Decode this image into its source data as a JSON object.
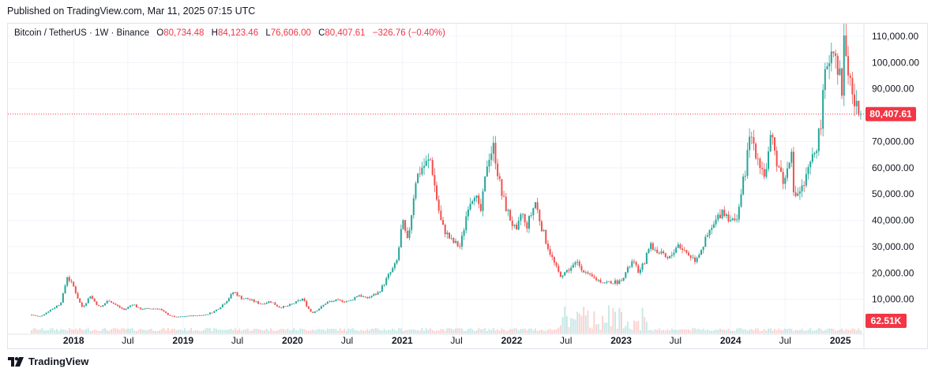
{
  "header": {
    "published": "Published on TradingView.com, Mar 11, 2025 07:15 UTC"
  },
  "legend": {
    "symbol": "Bitcoin / TetherUS · 1W · Binance",
    "o_label": "O",
    "o_value": "80,734.48",
    "h_label": "H",
    "h_value": "84,123.46",
    "l_label": "L",
    "l_value": "76,606.00",
    "c_label": "C",
    "c_value": "80,407.61",
    "change": "−326.76 (−0.40%)"
  },
  "footer": {
    "brand": "TradingView",
    "logo_icon": "tradingview-logo-icon"
  },
  "colors": {
    "up": "#26a69a",
    "down": "#ef5350",
    "price_tag": "#f23645",
    "grid": "#f0f3fa"
  },
  "chart_data": {
    "type": "candlestick",
    "interval": "1W",
    "y_axis": {
      "ticks": [
        10000,
        20000,
        30000,
        40000,
        50000,
        60000,
        70000,
        90000,
        100000,
        110000
      ],
      "tick_labels": [
        "10,000.00",
        "20,000.00",
        "30,000.00",
        "40,000.00",
        "50,000.00",
        "60,000.00",
        "70,000.00",
        "90,000.00",
        "100,000.00",
        "110,000.00"
      ],
      "range": [
        0,
        113000
      ]
    },
    "x_axis": {
      "ticks": [
        "2018-01-01",
        "2018-07-01",
        "2019-01-01",
        "2019-07-01",
        "2020-01-01",
        "2020-07-01",
        "2021-01-01",
        "2021-07-01",
        "2022-01-01",
        "2022-07-01",
        "2023-01-01",
        "2023-07-01",
        "2024-01-01",
        "2024-07-01",
        "2025-01-01"
      ],
      "tick_labels": [
        "2018",
        "Jul",
        "2019",
        "Jul",
        "2020",
        "Jul",
        "2021",
        "Jul",
        "2022",
        "Jul",
        "2023",
        "Jul",
        "2024",
        "Jul",
        "2025"
      ],
      "range": [
        "2017-08-14",
        "2025-03-10"
      ]
    },
    "last_price": {
      "value": 80407.61,
      "label": "80,407.61"
    },
    "volume_label": "62.51K",
    "price_path": [
      [
        "2017-08-14",
        4300
      ],
      [
        "2017-09-15",
        3400
      ],
      [
        "2017-10-20",
        5800
      ],
      [
        "2017-11-25",
        8500
      ],
      [
        "2017-12-17",
        19000
      ],
      [
        "2018-01-10",
        14500
      ],
      [
        "2018-02-06",
        7000
      ],
      [
        "2018-03-05",
        11500
      ],
      [
        "2018-04-06",
        6800
      ],
      [
        "2018-05-05",
        9800
      ],
      [
        "2018-06-25",
        6000
      ],
      [
        "2018-07-25",
        8400
      ],
      [
        "2018-08-15",
        6300
      ],
      [
        "2018-10-20",
        6500
      ],
      [
        "2018-11-25",
        3800
      ],
      [
        "2018-12-15",
        3200
      ],
      [
        "2019-01-20",
        3600
      ],
      [
        "2019-03-20",
        4000
      ],
      [
        "2019-04-20",
        5300
      ],
      [
        "2019-05-25",
        8500
      ],
      [
        "2019-06-26",
        13000
      ],
      [
        "2019-07-20",
        10500
      ],
      [
        "2019-08-15",
        10000
      ],
      [
        "2019-09-25",
        8200
      ],
      [
        "2019-10-26",
        9300
      ],
      [
        "2019-11-25",
        7000
      ],
      [
        "2019-12-18",
        7200
      ],
      [
        "2020-02-12",
        10300
      ],
      [
        "2020-03-13",
        4800
      ],
      [
        "2020-04-30",
        8800
      ],
      [
        "2020-06-01",
        9500
      ],
      [
        "2020-07-15",
        9200
      ],
      [
        "2020-08-15",
        11800
      ],
      [
        "2020-09-10",
        10300
      ],
      [
        "2020-10-20",
        12500
      ],
      [
        "2020-11-20",
        18500
      ],
      [
        "2020-12-20",
        24000
      ],
      [
        "2021-01-08",
        40000
      ],
      [
        "2021-01-25",
        32000
      ],
      [
        "2021-02-20",
        55000
      ],
      [
        "2021-03-13",
        60000
      ],
      [
        "2021-04-14",
        63000
      ],
      [
        "2021-05-20",
        38000
      ],
      [
        "2021-06-22",
        32000
      ],
      [
        "2021-07-20",
        30000
      ],
      [
        "2021-08-15",
        46000
      ],
      [
        "2021-09-07",
        51000
      ],
      [
        "2021-09-25",
        42000
      ],
      [
        "2021-10-20",
        64000
      ],
      [
        "2021-11-10",
        68000
      ],
      [
        "2021-12-05",
        50000
      ],
      [
        "2022-01-24",
        35000
      ],
      [
        "2022-02-10",
        44000
      ],
      [
        "2022-02-24",
        37000
      ],
      [
        "2022-03-28",
        47000
      ],
      [
        "2022-05-12",
        29000
      ],
      [
        "2022-06-18",
        19000
      ],
      [
        "2022-08-15",
        24000
      ],
      [
        "2022-09-20",
        19000
      ],
      [
        "2022-11-09",
        16500
      ],
      [
        "2022-12-31",
        16500
      ],
      [
        "2023-02-15",
        24500
      ],
      [
        "2023-03-10",
        20000
      ],
      [
        "2023-04-14",
        30500
      ],
      [
        "2023-06-15",
        25000
      ],
      [
        "2023-07-15",
        31000
      ],
      [
        "2023-09-11",
        25000
      ],
      [
        "2023-10-25",
        34500
      ],
      [
        "2023-12-10",
        44000
      ],
      [
        "2024-01-23",
        39000
      ],
      [
        "2024-03-14",
        73000
      ],
      [
        "2024-05-01",
        57000
      ],
      [
        "2024-05-22",
        71000
      ],
      [
        "2024-07-05",
        54000
      ],
      [
        "2024-07-29",
        69000
      ],
      [
        "2024-08-05",
        49000
      ],
      [
        "2024-09-06",
        52500
      ],
      [
        "2024-10-29",
        72500
      ],
      [
        "2024-11-22",
        99000
      ],
      [
        "2024-12-17",
        108000
      ],
      [
        "2025-01-13",
        90000
      ],
      [
        "2025-01-20",
        109000
      ],
      [
        "2025-02-03",
        97000
      ],
      [
        "2025-02-25",
        84000
      ],
      [
        "2025-03-10",
        80407.61
      ]
    ]
  }
}
